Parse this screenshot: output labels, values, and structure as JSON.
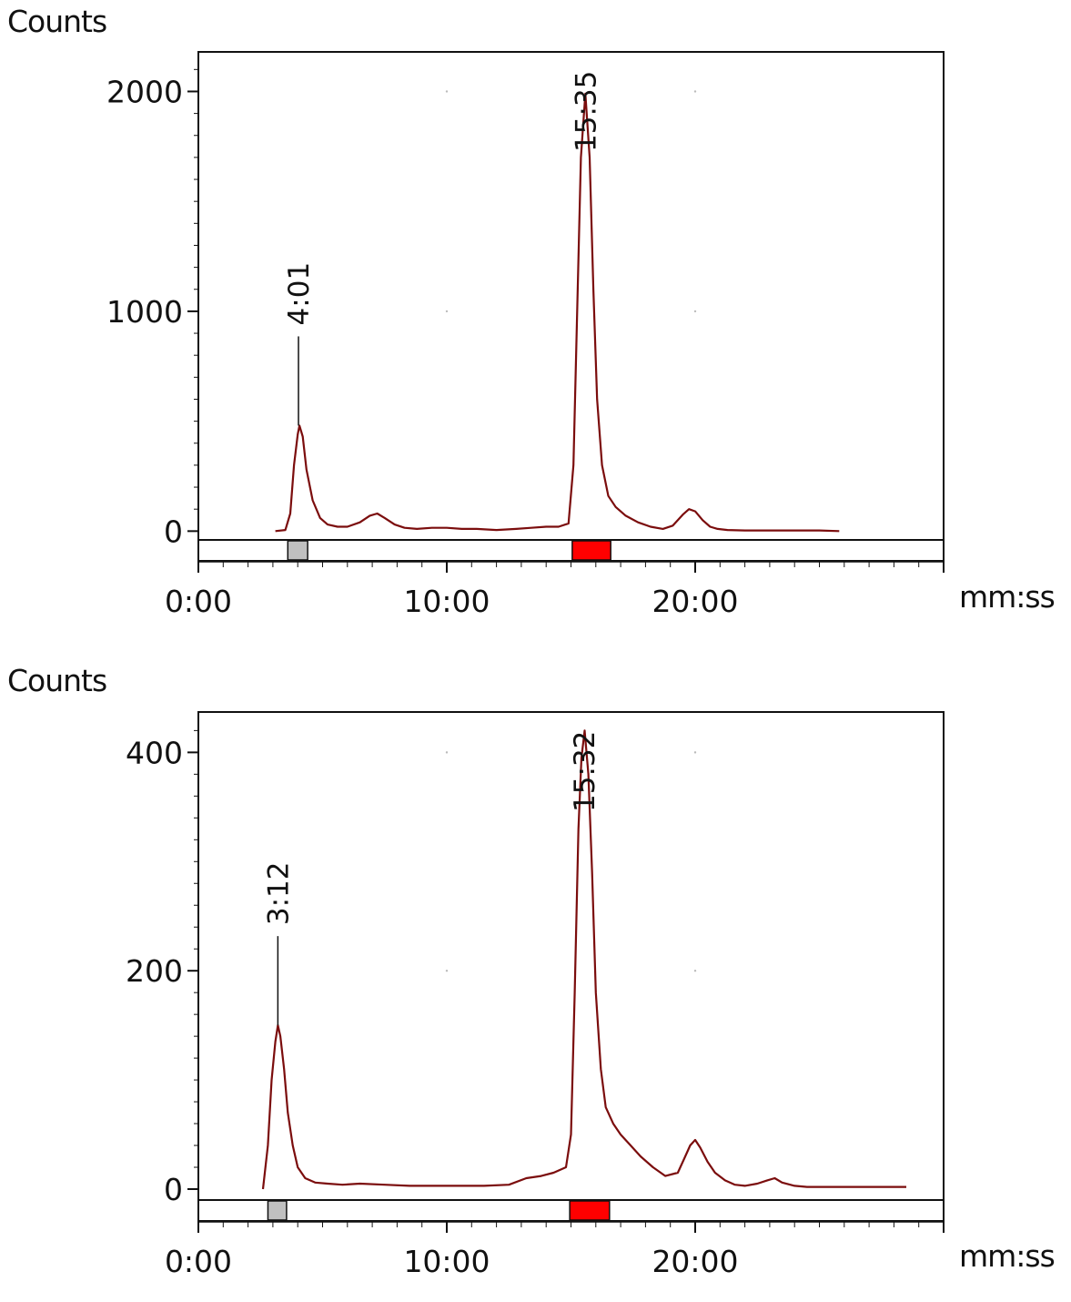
{
  "chart_data": [
    {
      "type": "line",
      "title": "",
      "ylabel": "Counts",
      "xlabel": "mm:ss",
      "xlim": [
        0,
        30
      ],
      "ylim": [
        -40,
        2180
      ],
      "x_ticks": [
        0,
        10,
        20
      ],
      "x_tick_labels": [
        "0:00",
        "10:00",
        "20:00"
      ],
      "y_ticks": [
        0,
        1000,
        2000
      ],
      "y_tick_labels": [
        "0",
        "1000",
        "2000"
      ],
      "grid": "dotted",
      "line_color": "#7b0d0d",
      "series": [
        {
          "x": [
            3.1,
            3.5,
            3.7,
            3.85,
            4.0,
            4.07,
            4.2,
            4.35,
            4.6,
            4.9,
            5.2,
            5.6,
            6.0,
            6.5,
            6.9,
            7.2,
            7.5,
            7.9,
            8.3,
            8.8,
            9.4,
            10.0,
            10.6,
            11.2,
            12.0,
            12.8,
            13.4,
            14.0,
            14.5,
            14.9,
            15.1,
            15.25,
            15.4,
            15.58,
            15.75,
            15.9,
            16.05,
            16.25,
            16.5,
            16.8,
            17.2,
            17.7,
            18.2,
            18.7,
            19.1,
            19.5,
            19.75,
            20.0,
            20.3,
            20.6,
            20.9,
            21.3,
            22.0,
            23.0,
            24.0,
            25.0,
            25.8
          ],
          "y": [
            0,
            5,
            80,
            300,
            440,
            480,
            430,
            280,
            140,
            60,
            30,
            20,
            20,
            40,
            70,
            80,
            60,
            30,
            15,
            10,
            15,
            15,
            10,
            10,
            5,
            10,
            15,
            20,
            20,
            35,
            300,
            1000,
            1700,
            1990,
            1700,
            1100,
            600,
            300,
            160,
            110,
            70,
            40,
            20,
            10,
            25,
            75,
            100,
            90,
            50,
            20,
            10,
            5,
            3,
            3,
            3,
            3,
            0
          ]
        }
      ],
      "peak_labels": [
        {
          "x": 4.03,
          "y": 480,
          "label": "4:01"
        },
        {
          "x": 15.58,
          "y": 1990,
          "label": "15:35"
        }
      ],
      "markers": [
        {
          "start": 3.6,
          "end": 4.4,
          "color": "#c0c0c0"
        },
        {
          "start": 15.05,
          "end": 16.6,
          "color": "#ff0000"
        }
      ]
    },
    {
      "type": "line",
      "title": "",
      "ylabel": "Counts",
      "xlabel": "mm:ss",
      "xlim": [
        0,
        30
      ],
      "ylim": [
        -10,
        437
      ],
      "x_ticks": [
        0,
        10,
        20
      ],
      "x_tick_labels": [
        "0:00",
        "10:00",
        "20:00"
      ],
      "y_ticks": [
        0,
        200,
        400
      ],
      "y_tick_labels": [
        "0",
        "200",
        "400"
      ],
      "grid": "dotted",
      "line_color": "#7b0d0d",
      "series": [
        {
          "x": [
            2.6,
            2.8,
            2.95,
            3.1,
            3.2,
            3.3,
            3.45,
            3.6,
            3.8,
            4.0,
            4.3,
            4.7,
            5.2,
            5.8,
            6.5,
            7.5,
            8.5,
            9.5,
            10.5,
            11.5,
            12.5,
            13.2,
            13.8,
            14.3,
            14.8,
            15.0,
            15.15,
            15.3,
            15.42,
            15.55,
            15.7,
            15.85,
            16.0,
            16.2,
            16.4,
            16.7,
            17.0,
            17.4,
            17.8,
            18.3,
            18.8,
            19.3,
            19.6,
            19.8,
            20.0,
            20.2,
            20.5,
            20.8,
            21.2,
            21.6,
            22.0,
            22.5,
            22.9,
            23.2,
            23.5,
            24.0,
            24.5,
            25.5,
            27.0,
            28.5
          ],
          "y": [
            0,
            40,
            100,
            135,
            150,
            140,
            110,
            70,
            40,
            20,
            10,
            6,
            5,
            4,
            5,
            4,
            3,
            3,
            3,
            3,
            4,
            10,
            12,
            15,
            20,
            50,
            180,
            330,
            395,
            420,
            380,
            290,
            180,
            110,
            75,
            60,
            50,
            40,
            30,
            20,
            12,
            15,
            30,
            40,
            45,
            38,
            25,
            15,
            8,
            4,
            3,
            5,
            8,
            10,
            6,
            3,
            2,
            2,
            2,
            2
          ]
        }
      ],
      "peak_labels": [
        {
          "x": 3.2,
          "y": 150,
          "label": "3:12"
        },
        {
          "x": 15.53,
          "y": 420,
          "label": "15:32"
        }
      ],
      "markers": [
        {
          "start": 2.8,
          "end": 3.55,
          "color": "#c0c0c0"
        },
        {
          "start": 14.95,
          "end": 16.55,
          "color": "#ff0000"
        }
      ]
    }
  ]
}
